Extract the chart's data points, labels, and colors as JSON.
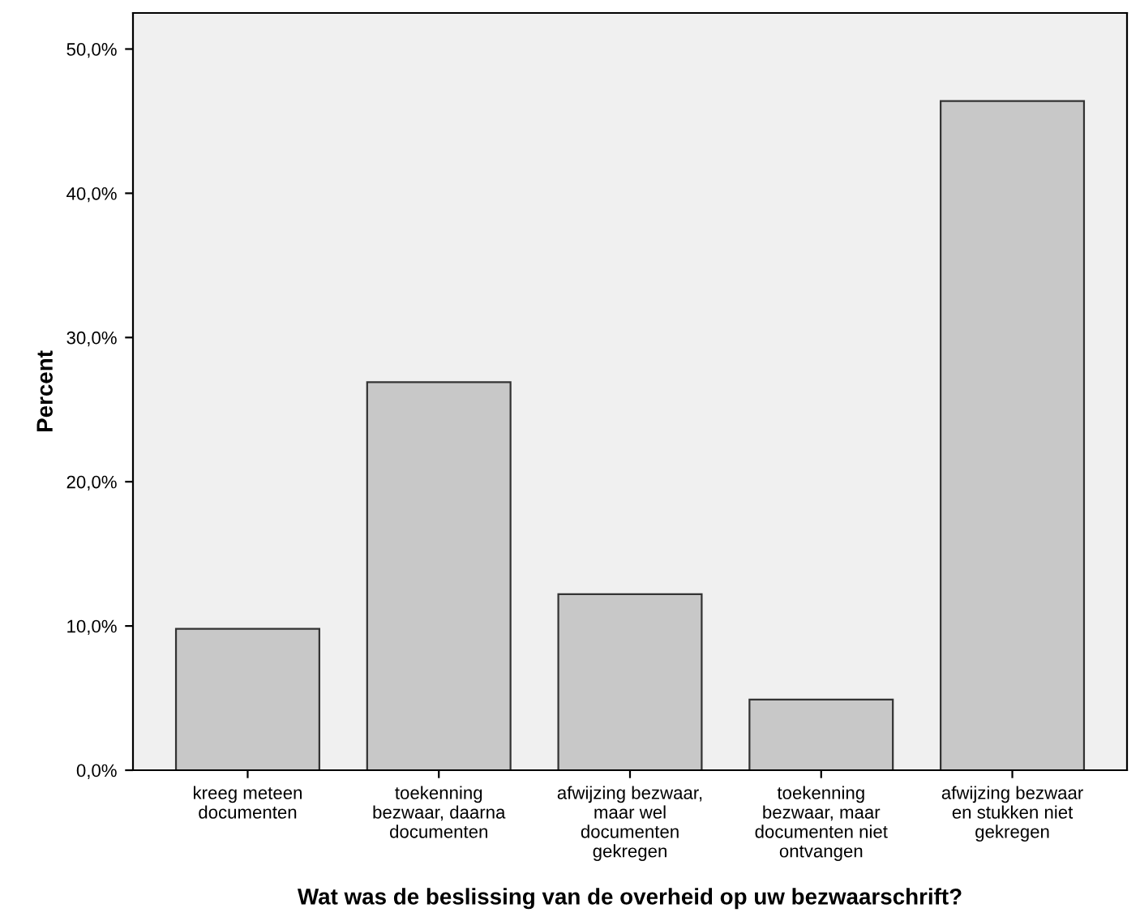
{
  "chart_data": {
    "type": "bar",
    "xlabel": "Wat was de beslissing van de overheid op uw bezwaarschrift?",
    "ylabel": "Percent",
    "categories": [
      "kreeg meteen\ndocumenten",
      "toekenning\nbezwaar, daarna\ndocumenten",
      "afwijzing bezwaar,\nmaar wel\ndocumenten\ngekregen",
      "toekenning\nbezwaar, maar\ndocumenten niet\nontvangen",
      "afwijzing bezwaar\nen stukken niet\ngekregen"
    ],
    "values": [
      9.8,
      26.9,
      12.2,
      4.9,
      46.4
    ],
    "color": "#c8c8c8",
    "ylim": [
      0,
      52.5
    ],
    "yticks": [
      {
        "value": 0,
        "label": "0,0%"
      },
      {
        "value": 10,
        "label": "10,0%"
      },
      {
        "value": 20,
        "label": "20,0%"
      },
      {
        "value": 30,
        "label": "30,0%"
      },
      {
        "value": 40,
        "label": "40,0%"
      },
      {
        "value": 50,
        "label": "50,0%"
      }
    ],
    "grid": false
  }
}
